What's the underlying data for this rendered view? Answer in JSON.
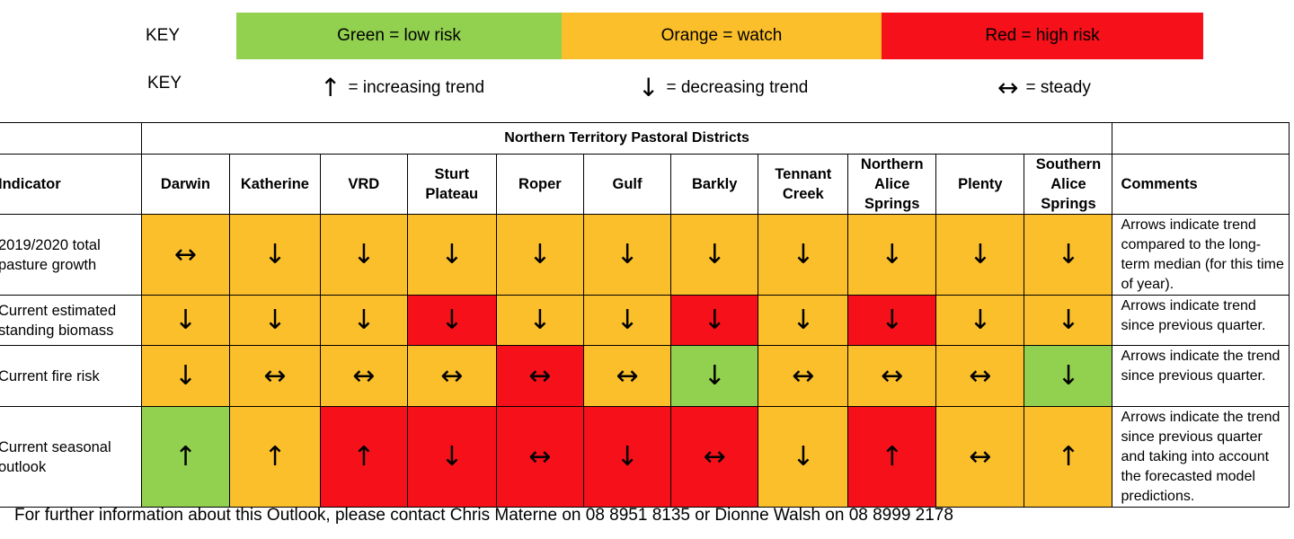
{
  "key": {
    "label": "KEY",
    "items": [
      {
        "text": "Green = low risk",
        "color": "#92d050",
        "text_color": "#000000"
      },
      {
        "text": "Orange = watch",
        "color": "#fbbf2c",
        "text_color": "#000000"
      },
      {
        "text": "Red = high risk",
        "color": "#f5101a",
        "text_color": "#000000"
      }
    ]
  },
  "trend_key": {
    "label": "KEY",
    "items": [
      {
        "arrow": "↑",
        "icon": "arrow-up-icon",
        "text": "= increasing trend"
      },
      {
        "arrow": "↓",
        "icon": "arrow-down-icon",
        "text": "= decreasing trend"
      },
      {
        "arrow": "↔",
        "icon": "arrow-left-right-icon",
        "text": "= steady"
      }
    ]
  },
  "table": {
    "group_header": "Northern Territory Pastoral Districts",
    "indicator_header": "Indicator",
    "comments_header": "Comments",
    "districts": [
      "Darwin",
      "Katherine",
      "VRD",
      "Sturt Plateau",
      "Roper",
      "Gulf",
      "Barkly",
      "Tennant Creek",
      "Northern Alice Springs",
      "Plenty",
      "Southern Alice Springs"
    ],
    "rows": [
      {
        "indicator": "2019/2020 total pasture growth",
        "cells": [
          {
            "arrow": "↔",
            "status": "orange"
          },
          {
            "arrow": "↓",
            "status": "orange"
          },
          {
            "arrow": "↓",
            "status": "orange"
          },
          {
            "arrow": "↓",
            "status": "orange"
          },
          {
            "arrow": "↓",
            "status": "orange"
          },
          {
            "arrow": "↓",
            "status": "orange"
          },
          {
            "arrow": "↓",
            "status": "orange"
          },
          {
            "arrow": "↓",
            "status": "orange"
          },
          {
            "arrow": "↓",
            "status": "orange"
          },
          {
            "arrow": "↓",
            "status": "orange"
          },
          {
            "arrow": "↓",
            "status": "orange"
          }
        ],
        "comment": "Arrows indicate trend compared to the long-term median (for this time of year)."
      },
      {
        "indicator": "Current estimated standing biomass",
        "cells": [
          {
            "arrow": "↓",
            "status": "orange"
          },
          {
            "arrow": "↓",
            "status": "orange"
          },
          {
            "arrow": "↓",
            "status": "orange"
          },
          {
            "arrow": "↓",
            "status": "red"
          },
          {
            "arrow": "↓",
            "status": "orange"
          },
          {
            "arrow": "↓",
            "status": "orange"
          },
          {
            "arrow": "↓",
            "status": "red"
          },
          {
            "arrow": "↓",
            "status": "orange"
          },
          {
            "arrow": "↓",
            "status": "red"
          },
          {
            "arrow": "↓",
            "status": "orange"
          },
          {
            "arrow": "↓",
            "status": "orange"
          }
        ],
        "comment": "Arrows indicate trend since previous quarter."
      },
      {
        "indicator": "Current fire risk",
        "cells": [
          {
            "arrow": "↓",
            "status": "orange"
          },
          {
            "arrow": "↔",
            "status": "orange"
          },
          {
            "arrow": "↔",
            "status": "orange"
          },
          {
            "arrow": "↔",
            "status": "orange"
          },
          {
            "arrow": "↔",
            "status": "red"
          },
          {
            "arrow": "↔",
            "status": "orange"
          },
          {
            "arrow": "↓",
            "status": "green"
          },
          {
            "arrow": "↔",
            "status": "orange"
          },
          {
            "arrow": "↔",
            "status": "orange"
          },
          {
            "arrow": "↔",
            "status": "orange"
          },
          {
            "arrow": "↓",
            "status": "green"
          }
        ],
        "comment": "Arrows indicate the trend since previous quarter."
      },
      {
        "indicator": "Current seasonal outlook",
        "cells": [
          {
            "arrow": "↑",
            "status": "green"
          },
          {
            "arrow": "↑",
            "status": "orange"
          },
          {
            "arrow": "↑",
            "status": "red"
          },
          {
            "arrow": "↓",
            "status": "red"
          },
          {
            "arrow": "↔",
            "status": "red"
          },
          {
            "arrow": "↓",
            "status": "red"
          },
          {
            "arrow": "↔",
            "status": "red"
          },
          {
            "arrow": "↓",
            "status": "orange"
          },
          {
            "arrow": "↑",
            "status": "red"
          },
          {
            "arrow": "↔",
            "status": "orange"
          },
          {
            "arrow": "↑",
            "status": "orange"
          }
        ],
        "comment": "Arrows indicate the trend since previous quarter and taking into account the forecasted model predictions."
      }
    ]
  },
  "footer": "For further information about this Outlook, please contact Chris Materne on 08 8951 8135 or Dionne Walsh on 08 8999 2178"
}
